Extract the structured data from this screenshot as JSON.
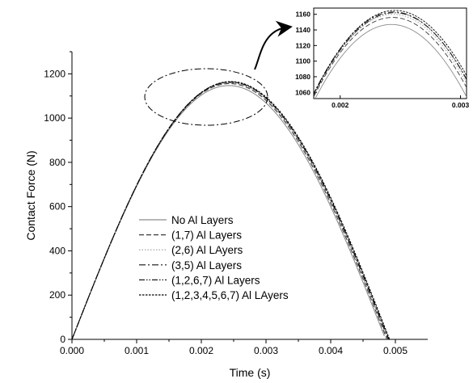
{
  "chart_data": [
    {
      "type": "line",
      "xlabel": "Time (s)",
      "ylabel": "Contact Force (N)",
      "xlim": [
        0,
        0.0055
      ],
      "ylim": [
        0,
        1300
      ],
      "xticks": [
        "0.000",
        "0.001",
        "0.002",
        "0.003",
        "0.004",
        "0.005"
      ],
      "yticks": [
        "0",
        "200",
        "400",
        "600",
        "800",
        "1000",
        "1200"
      ],
      "legend_position": "lower-center",
      "series": [
        {
          "name": "No Al Layers",
          "style": "solid",
          "color": "#8c8c8c",
          "t_end": 0.00485,
          "peak_time": 0.002425,
          "peak_force": 1147
        },
        {
          "name": "(1,7) Al Layers",
          "style": "dashed",
          "color": "#3a3a3a",
          "t_end": 0.00487,
          "peak_time": 0.002435,
          "peak_force": 1156
        },
        {
          "name": "(2,6) Al LAyers",
          "style": "dotted",
          "color": "#9a9a9a",
          "t_end": 0.00488,
          "peak_time": 0.00244,
          "peak_force": 1160
        },
        {
          "name": "(3,5) Al Layers",
          "style": "dashdot",
          "color": "#111111",
          "t_end": 0.00489,
          "peak_time": 0.002445,
          "peak_force": 1163
        },
        {
          "name": "(1,2,6,7) Al Layers",
          "style": "dashdotdot",
          "color": "#1a1a1a",
          "t_end": 0.0049,
          "peak_time": 0.00245,
          "peak_force": 1162
        },
        {
          "name": "(1,2,3,4,5,6,7) Al LAyers",
          "style": "shortdot",
          "color": "#000000",
          "t_end": 0.00491,
          "peak_time": 0.002455,
          "peak_force": 1165
        }
      ]
    },
    {
      "type": "line",
      "role": "inset-zoom",
      "xlim": [
        0.00178,
        0.00305
      ],
      "ylim": [
        1052,
        1168
      ],
      "xticks": [
        "0.002",
        "0.003"
      ],
      "yticks": [
        "1060",
        "1080",
        "1100",
        "1120",
        "1140",
        "1160"
      ]
    }
  ]
}
